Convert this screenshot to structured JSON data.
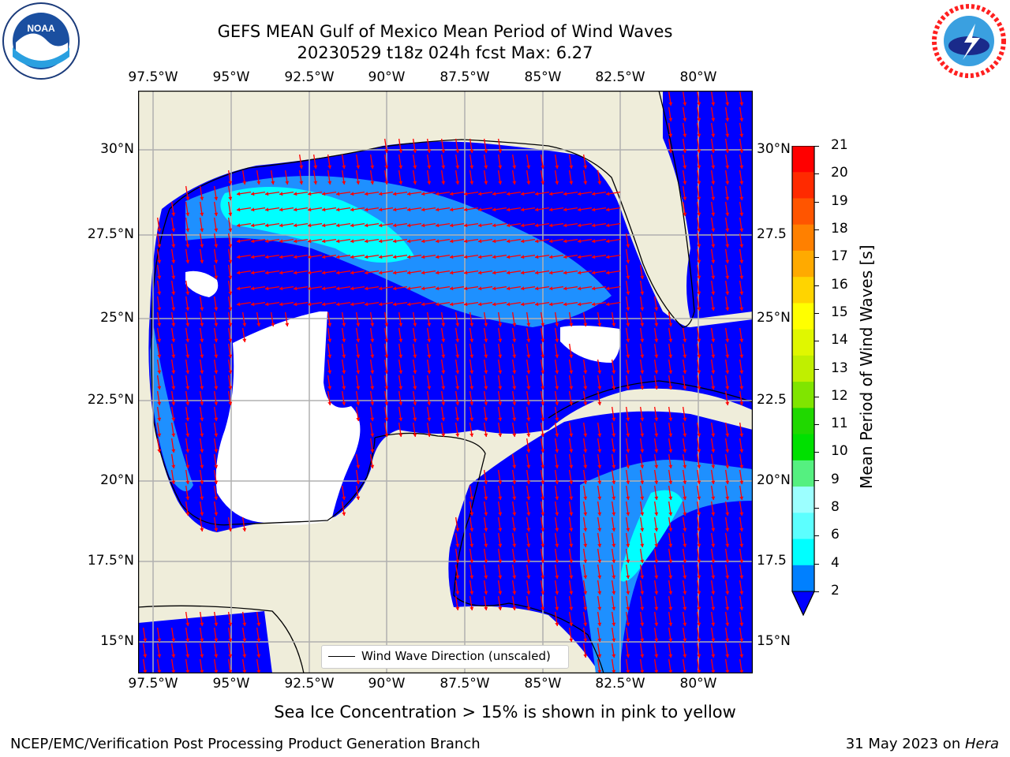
{
  "header": {
    "title_line1": "GEFS MEAN Gulf of Mexico Mean Period of Wind Waves",
    "title_line2": "20230529 t18z 024h fcst   Max: 6.27"
  },
  "map": {
    "lon_ticks": [
      "97.5°W",
      "95°W",
      "92.5°W",
      "90°W",
      "87.5°W",
      "85°W",
      "82.5°W",
      "80°W"
    ],
    "lat_ticks": [
      "30°N",
      "27.5°N",
      "25°N",
      "22.5°N",
      "20°N",
      "17.5°N",
      "15°N"
    ],
    "lat_ticks_right": [
      "30°N",
      "27.5",
      "25°N",
      "22.5",
      "20°N",
      "17.5",
      "15°N"
    ],
    "legend_label": "Wind Wave Direction (unscaled)",
    "colors": {
      "land": "#efedda",
      "ocean_low": "#0000ff",
      "ocean_mid": "#1e90ff",
      "ocean_high": "#00ffff",
      "arrow": "#ff0000",
      "grid": "#b0b0b0"
    }
  },
  "colorbar": {
    "label": "Mean Period of Wind Waves [s]",
    "ticks": [
      "21",
      "20",
      "19",
      "18",
      "17",
      "16",
      "15",
      "14",
      "13",
      "12",
      "11",
      "10",
      "9",
      "8",
      "6",
      "4",
      "2"
    ],
    "colors": [
      "#ff0000",
      "#ff2a00",
      "#ff5500",
      "#ff8000",
      "#ffaa00",
      "#ffd400",
      "#ffff00",
      "#e0f700",
      "#c0ef00",
      "#80e500",
      "#20d800",
      "#00e000",
      "#55f080",
      "#9cffff",
      "#5cffff",
      "#00ffff",
      "#0080ff"
    ]
  },
  "caption": "Sea Ice Concentration > 15% is shown in pink to yellow",
  "footer": {
    "left": "NCEP/EMC/Verification Post Processing Product Generation Branch",
    "right_prefix": "31 May 2023 on ",
    "right_host": "Hera"
  },
  "logos": {
    "left": "NOAA",
    "right": "NATIONAL WEATHER SERVICE"
  }
}
